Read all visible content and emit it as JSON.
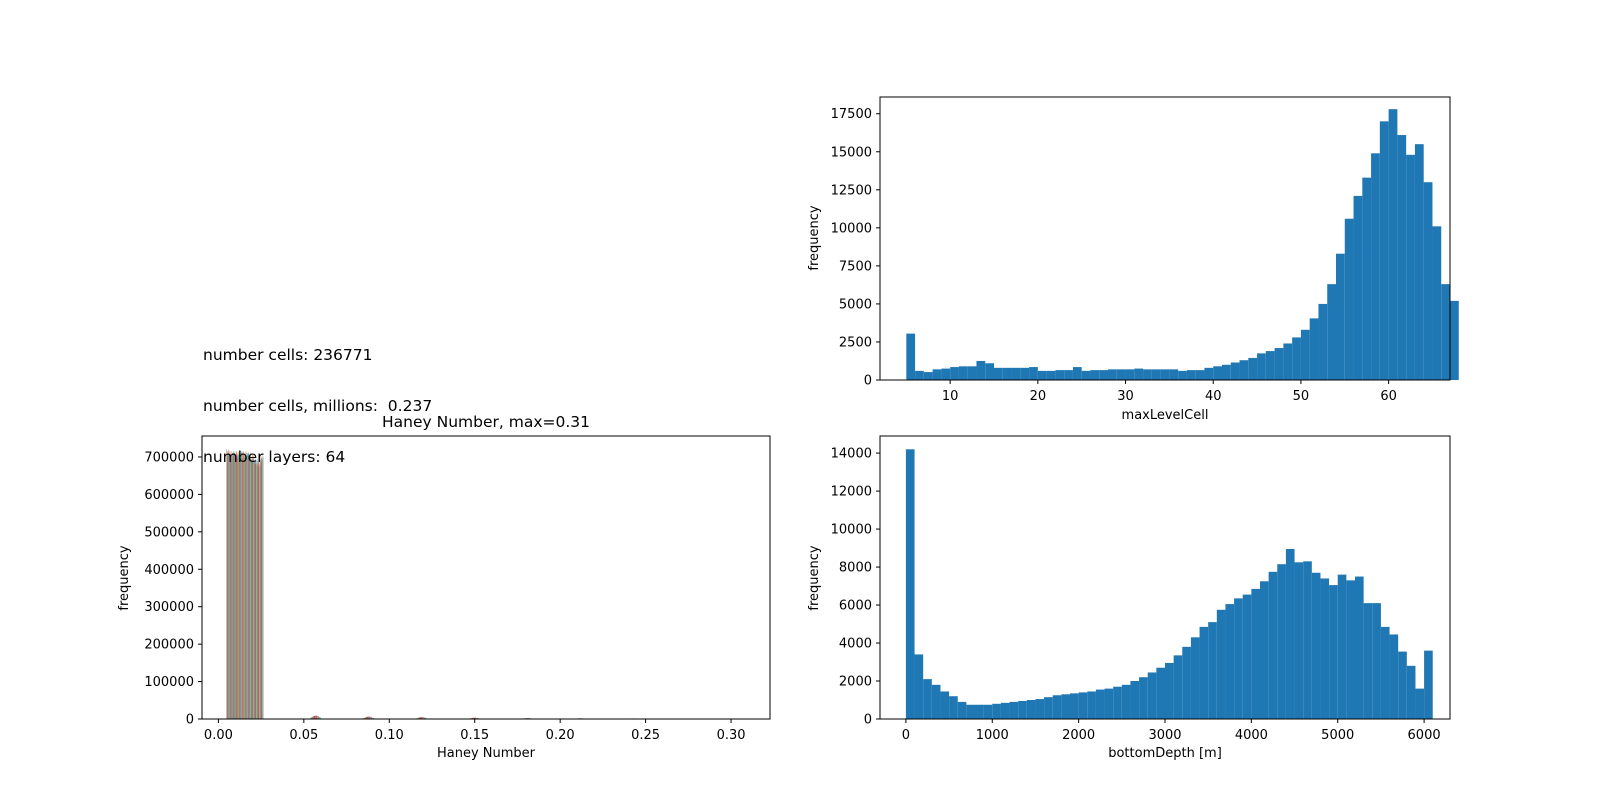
{
  "info": {
    "lines": [
      "number cells: 236771",
      "number cells, millions:  0.237",
      "number layers: 64"
    ]
  },
  "colors": {
    "primary": "#1f77b4",
    "cycle": [
      "#1f77b4",
      "#ff7f0e",
      "#2ca02c",
      "#d62728",
      "#9467bd",
      "#8c564b",
      "#e377c2",
      "#7f7f7f",
      "#bcbd22",
      "#17becf"
    ]
  },
  "chart_data": [
    {
      "id": "maxlevel",
      "type": "bar",
      "title": "",
      "xlabel": "maxLevelCell",
      "ylabel": "frequency",
      "xlim": [
        2,
        67
      ],
      "ylim": [
        0,
        18600
      ],
      "xticks": [
        10,
        20,
        30,
        40,
        50,
        60
      ],
      "yticks": [
        0,
        2500,
        5000,
        7500,
        10000,
        12500,
        15000,
        17500
      ],
      "bin_start": 5,
      "bin_width": 1,
      "values": [
        3050,
        600,
        520,
        700,
        750,
        850,
        900,
        900,
        1250,
        1100,
        800,
        800,
        800,
        800,
        850,
        600,
        600,
        650,
        650,
        850,
        600,
        650,
        650,
        700,
        700,
        700,
        750,
        700,
        700,
        700,
        700,
        600,
        650,
        650,
        800,
        900,
        1000,
        1150,
        1300,
        1450,
        1750,
        1900,
        2100,
        2400,
        2800,
        3300,
        4050,
        5000,
        6300,
        8300,
        10600,
        12100,
        13300,
        14900,
        17000,
        17800,
        16100,
        14800,
        15500,
        13000,
        10100,
        6300,
        5200
      ]
    },
    {
      "id": "haney",
      "type": "bar",
      "title": "Haney Number, max=0.31",
      "xlabel": "Haney Number",
      "ylabel": "frequency",
      "xlim": [
        -0.0096,
        0.3228
      ],
      "ylim": [
        0,
        756000
      ],
      "xticks": [
        0.0,
        0.05,
        0.1,
        0.15,
        0.2,
        0.25,
        0.3
      ],
      "xtick_labels": [
        "0.00",
        "0.05",
        "0.10",
        "0.15",
        "0.20",
        "0.25",
        "0.30"
      ],
      "yticks": [
        0,
        100000,
        200000,
        300000,
        400000,
        500000,
        600000,
        700000
      ],
      "main_bin_start": 0.0047,
      "main_bin_width": 0.0018,
      "main_series_per_bin": 10,
      "main_values": [
        720000,
        716000,
        715000,
        715000,
        715000,
        715000,
        715000,
        712000,
        705000,
        695000,
        690000,
        705000
      ],
      "small_groups": [
        {
          "x": 0.057,
          "value": 9000
        },
        {
          "x": 0.088,
          "value": 6500
        },
        {
          "x": 0.119,
          "value": 5000
        },
        {
          "x": 0.15,
          "value": 3500
        },
        {
          "x": 0.181,
          "value": 2500
        },
        {
          "x": 0.212,
          "value": 2000
        },
        {
          "x": 0.243,
          "value": 1500
        },
        {
          "x": 0.274,
          "value": 1200
        },
        {
          "x": 0.305,
          "value": 1000
        }
      ]
    },
    {
      "id": "depth",
      "type": "bar",
      "title": "",
      "xlabel": "bottomDepth [m]",
      "ylabel": "frequency",
      "xlim": [
        -300,
        6300
      ],
      "ylim": [
        0,
        14900
      ],
      "xticks": [
        0,
        1000,
        2000,
        3000,
        4000,
        5000,
        6000
      ],
      "yticks": [
        0,
        2000,
        4000,
        6000,
        8000,
        10000,
        12000,
        14000
      ],
      "bin_start": 0,
      "bin_width": 100,
      "values": [
        14200,
        3400,
        2100,
        1800,
        1450,
        1200,
        900,
        750,
        750,
        750,
        800,
        850,
        900,
        950,
        1000,
        1050,
        1150,
        1250,
        1300,
        1350,
        1400,
        1450,
        1550,
        1600,
        1700,
        1800,
        2000,
        2200,
        2450,
        2700,
        2950,
        3350,
        3800,
        4300,
        4850,
        5100,
        5750,
        6050,
        6350,
        6550,
        6850,
        7250,
        7750,
        8150,
        8950,
        8250,
        8300,
        7700,
        7400,
        7050,
        7600,
        7300,
        7500,
        6100,
        6100,
        4850,
        4450,
        3550,
        2800,
        1600,
        3600
      ]
    }
  ]
}
